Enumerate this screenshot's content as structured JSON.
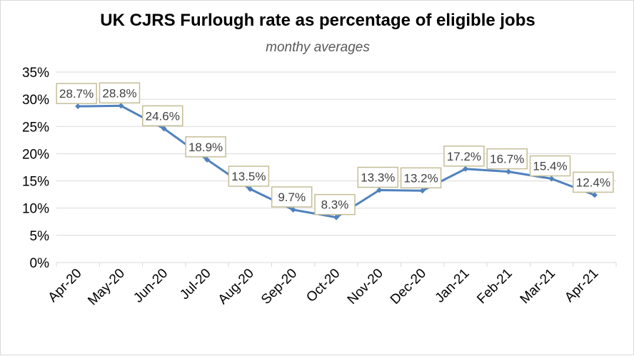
{
  "chart_data": {
    "type": "line",
    "title": "UK CJRS Furlough rate as percentage of eligible jobs",
    "subtitle": "monthy averages",
    "xlabel": "",
    "ylabel": "",
    "categories": [
      "Apr-20",
      "May-20",
      "Jun-20",
      "Jul-20",
      "Aug-20",
      "Sep-20",
      "Oct-20",
      "Nov-20",
      "Dec-20",
      "Jan-21",
      "Feb-21",
      "Mar-21",
      "Apr-21"
    ],
    "series": [
      {
        "values": [
          28.7,
          28.8,
          24.6,
          18.9,
          13.5,
          9.7,
          8.3,
          13.3,
          13.2,
          17.2,
          16.7,
          15.4,
          12.4
        ],
        "data_labels": [
          "28.7%",
          "28.8%",
          "24.6%",
          "18.9%",
          "13.5%",
          "9.7%",
          "8.3%",
          "13.3%",
          "13.2%",
          "17.2%",
          "16.7%",
          "15.4%",
          "12.4%"
        ]
      }
    ],
    "ylim": [
      0,
      35
    ],
    "y_ticks": [
      0,
      5,
      10,
      15,
      20,
      25,
      30,
      35
    ],
    "y_tick_labels": [
      "0%",
      "5%",
      "10%",
      "15%",
      "20%",
      "25%",
      "30%",
      "35%"
    ],
    "grid": true,
    "legend": "none",
    "line_color": "#4f81bd",
    "grid_color": "#d9d9d9",
    "label_border_color": "#c4bd97"
  }
}
